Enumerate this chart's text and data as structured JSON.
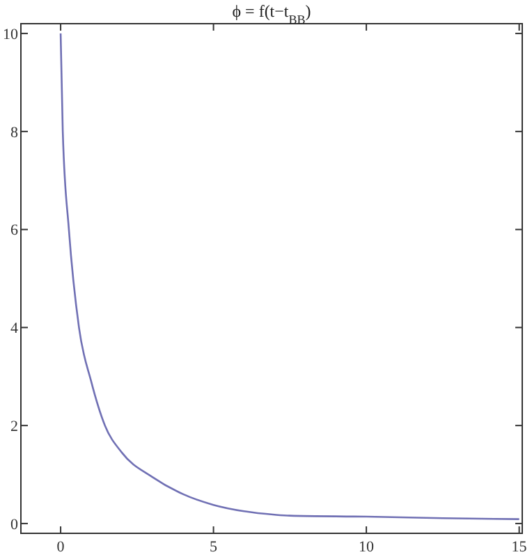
{
  "chart_data": {
    "type": "line",
    "title": "ϕ = f(t−t$_{BB}$)",
    "xlim": [
      -1.3,
      15.1
    ],
    "ylim": [
      -0.2,
      10.2
    ],
    "xticks": [
      0,
      5,
      10,
      15
    ],
    "yticks": [
      0,
      2,
      4,
      6,
      8,
      10
    ],
    "grid": false,
    "marker": "none",
    "series": [
      {
        "color": "#7070b4",
        "x": [
          0,
          0.07,
          0.27,
          0.6,
          1.0,
          1.45,
          2,
          3,
          4,
          5,
          6,
          7,
          7.5,
          10,
          12.5,
          15
        ],
        "values": [
          10,
          8,
          6,
          4,
          2.9,
          2,
          1.45,
          0.95,
          0.6,
          0.38,
          0.25,
          0.18,
          0.16,
          0.14,
          0.11,
          0.09
        ]
      }
    ]
  }
}
